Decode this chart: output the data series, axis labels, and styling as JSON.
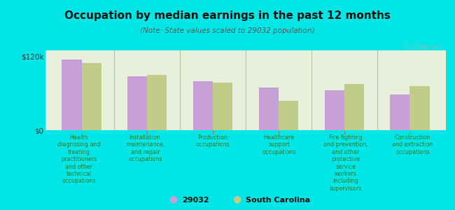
{
  "title": "Occupation by median earnings in the past 12 months",
  "subtitle": "(Note: State values scaled to 29032 population)",
  "background_color": "#00e5e5",
  "plot_bg_color": "#e8f0dc",
  "categories": [
    "Health\ndiagnosing and\ntreating\npractitioners\nand other\ntechnical\noccupations",
    "Installation,\nmaintenance,\nand repair\noccupations",
    "Production\noccupations",
    "Healthcare\nsupport\noccupations",
    "Fire fighting\nand prevention,\nand other\nprotective\nservice\nworkers\nincluding\nsupervisors",
    "Construction\nand extraction\noccupations"
  ],
  "values_29032": [
    115000,
    88000,
    80000,
    70000,
    65000,
    58000
  ],
  "values_sc": [
    110000,
    90000,
    78000,
    48000,
    75000,
    72000
  ],
  "color_29032": "#c8a0d8",
  "color_sc": "#c0cc88",
  "ylim": [
    0,
    130000
  ],
  "yticks": [
    0,
    120000
  ],
  "ytick_labels": [
    "$0",
    "$120k"
  ],
  "legend_label_29032": "29032",
  "legend_label_sc": "South Carolina",
  "bar_width": 0.3
}
